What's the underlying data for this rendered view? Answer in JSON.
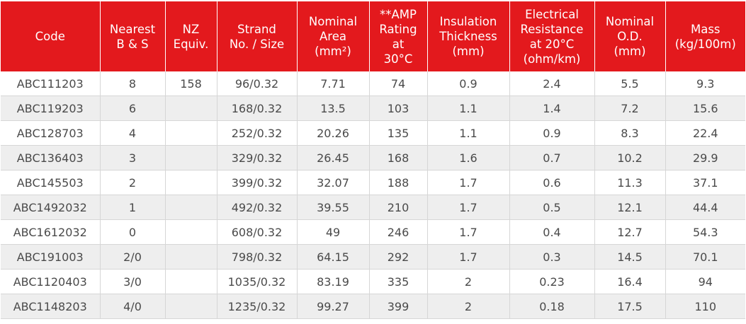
{
  "table": {
    "headers": [
      "Code",
      "Nearest\nB & S",
      "NZ\nEquiv.",
      "Strand\nNo. / Size",
      "Nominal\nArea\n(mm²)",
      "**AMP\nRating\nat\n30°C",
      "Insulation\nThickness\n(mm)",
      "Electrical\nResistance\nat 20°C\n(ohm/km)",
      "Nominal\nO.D.\n(mm)",
      "Mass\n(kg/100m)"
    ],
    "rows": [
      [
        "ABC111203",
        "8",
        "158",
        "96/0.32",
        "7.71",
        "74",
        "0.9",
        "2.4",
        "5.5",
        "9.3"
      ],
      [
        "ABC119203",
        "6",
        "",
        "168/0.32",
        "13.5",
        "103",
        "1.1",
        "1.4",
        "7.2",
        "15.6"
      ],
      [
        "ABC128703",
        "4",
        "",
        "252/0.32",
        "20.26",
        "135",
        "1.1",
        "0.9",
        "8.3",
        "22.4"
      ],
      [
        "ABC136403",
        "3",
        "",
        "329/0.32",
        "26.45",
        "168",
        "1.6",
        "0.7",
        "10.2",
        "29.9"
      ],
      [
        "ABC145503",
        "2",
        "",
        "399/0.32",
        "32.07",
        "188",
        "1.7",
        "0.6",
        "11.3",
        "37.1"
      ],
      [
        "ABC1492032",
        "1",
        "",
        "492/0.32",
        "39.55",
        "210",
        "1.7",
        "0.5",
        "12.1",
        "44.4"
      ],
      [
        "ABC1612032",
        "0",
        "",
        "608/0.32",
        "49",
        "246",
        "1.7",
        "0.4",
        "12.7",
        "54.3"
      ],
      [
        "ABC191003",
        "2/0",
        "",
        "798/0.32",
        "64.15",
        "292",
        "1.7",
        "0.3",
        "14.5",
        "70.1"
      ],
      [
        "ABC1120403",
        "3/0",
        "",
        "1035/0.32",
        "83.19",
        "335",
        "2",
        "0.23",
        "16.4",
        "94"
      ],
      [
        "ABC1148203",
        "4/0",
        "",
        "1235/0.32",
        "99.27",
        "399",
        "2",
        "0.18",
        "17.5",
        "110"
      ]
    ]
  }
}
